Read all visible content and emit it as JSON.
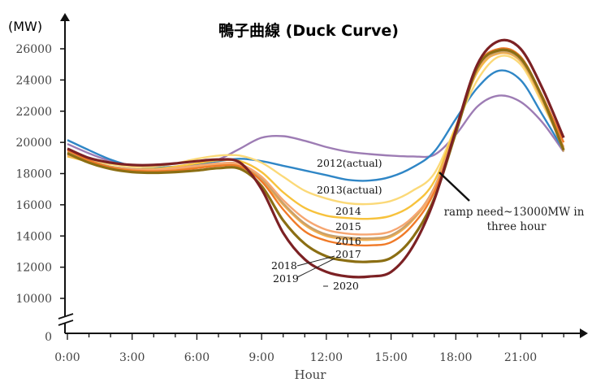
{
  "chart_data": {
    "type": "line",
    "title": "鴨子曲線 (Duck Curve)",
    "unit_label": "(MW)",
    "xlabel": "Hour",
    "ylabel": "",
    "x_tick_labels": [
      "0:00",
      "3:00",
      "6:00",
      "9:00",
      "12:00",
      "15:00",
      "18:00",
      "21:00"
    ],
    "y_tick_labels": [
      "0",
      "10000",
      "12000",
      "14000",
      "16000",
      "18000",
      "20000",
      "22000",
      "24000",
      "26000"
    ],
    "xlim": [
      0,
      24
    ],
    "ylim": [
      0,
      27500
    ],
    "y_axis_break": true,
    "x": [
      0,
      1,
      2,
      3,
      4,
      5,
      6,
      7,
      8,
      9,
      10,
      11,
      12,
      13,
      14,
      15,
      16,
      17,
      18,
      19,
      20,
      21,
      22,
      23
    ],
    "series": [
      {
        "name": "2012(actual)",
        "color": "#2f86c6",
        "values": [
          20150,
          19500,
          18900,
          18500,
          18400,
          18450,
          18600,
          18800,
          18950,
          18800,
          18500,
          18200,
          17900,
          17600,
          17550,
          17800,
          18400,
          19400,
          21500,
          23500,
          24600,
          24000,
          21800,
          19500
        ]
      },
      {
        "name": "2013(actual)",
        "color": "#fbd978",
        "values": [
          19250,
          18900,
          18600,
          18450,
          18450,
          18650,
          18950,
          19150,
          19150,
          18700,
          17800,
          16900,
          16400,
          16100,
          16050,
          16250,
          16900,
          18000,
          21000,
          24000,
          25500,
          25000,
          22500,
          19700
        ]
      },
      {
        "name": "2014",
        "color": "#f7c23c",
        "values": [
          19100,
          18750,
          18450,
          18300,
          18300,
          18450,
          18650,
          18850,
          18800,
          18100,
          16800,
          15800,
          15300,
          15150,
          15100,
          15300,
          16000,
          17500,
          21000,
          24500,
          25800,
          25300,
          22700,
          19600
        ]
      },
      {
        "name": "2015",
        "color": "#f6a671",
        "values": [
          19200,
          18750,
          18400,
          18250,
          18250,
          18350,
          18500,
          18650,
          18600,
          17800,
          16300,
          15100,
          14400,
          14150,
          14100,
          14300,
          15200,
          17000,
          20800,
          24700,
          25900,
          25400,
          22800,
          19700
        ]
      },
      {
        "name": "2016",
        "color": "#f07a28",
        "values": [
          19500,
          18850,
          18400,
          18200,
          18150,
          18200,
          18350,
          18500,
          18450,
          17500,
          15700,
          14300,
          13700,
          13450,
          13400,
          13600,
          14700,
          16800,
          20700,
          24900,
          26000,
          25500,
          23000,
          20000
        ]
      },
      {
        "name": "2017",
        "color": "#8b6e13",
        "values": [
          19300,
          18700,
          18300,
          18100,
          18050,
          18100,
          18200,
          18350,
          18300,
          17200,
          15000,
          13500,
          12700,
          12400,
          12350,
          12600,
          13900,
          16400,
          20600,
          24800,
          25900,
          25400,
          22900,
          19500
        ]
      },
      {
        "name": "2018",
        "color": "#f2b04f",
        "values": [
          19350,
          18800,
          18400,
          18250,
          18200,
          18300,
          18450,
          18600,
          18550,
          17600,
          16000,
          14700,
          14000,
          13800,
          13750,
          13950,
          15000,
          17000,
          20700,
          24600,
          25700,
          25200,
          22700,
          19500
        ]
      },
      {
        "name": "2019",
        "color": "#c9a06a",
        "values": [
          19400,
          18850,
          18450,
          18300,
          18250,
          18350,
          18500,
          18650,
          18600,
          17700,
          16100,
          14800,
          14100,
          13900,
          13850,
          14050,
          15100,
          17100,
          20800,
          24700,
          25800,
          25300,
          22800,
          19400
        ]
      },
      {
        "name": "2020",
        "color": "#7c2124",
        "values": [
          19600,
          19000,
          18700,
          18550,
          18550,
          18650,
          18800,
          18900,
          18700,
          17000,
          14200,
          12500,
          11700,
          11400,
          11400,
          11700,
          13300,
          16300,
          20800,
          25000,
          26500,
          26000,
          23500,
          20300
        ]
      },
      {
        "name": "",
        "color": "#9d7cb4",
        "values": [
          19900,
          19300,
          18800,
          18500,
          18350,
          18350,
          18550,
          18900,
          19600,
          20300,
          20400,
          20100,
          19700,
          19400,
          19250,
          19150,
          19100,
          19200,
          20500,
          22300,
          23000,
          22600,
          21300,
          19400
        ]
      }
    ],
    "annotation": {
      "line1": "ramp need~13000MW in",
      "line2": "three hour"
    },
    "grid": false,
    "legend": "inline labels"
  }
}
